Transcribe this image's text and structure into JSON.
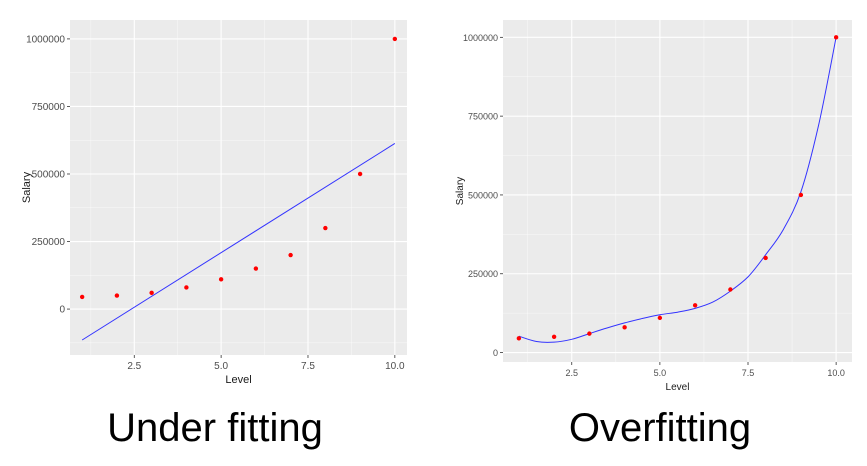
{
  "chart_data": [
    {
      "type": "scatter",
      "fit": "linear",
      "title": "",
      "xlabel": "Level",
      "ylabel": "Salary",
      "xlim": [
        0.65,
        10.35
      ],
      "ylim": [
        -170000,
        1070000
      ],
      "x_ticks": [
        2.5,
        5.0,
        7.5,
        10.0
      ],
      "x_tick_labels": [
        "2.5",
        "5.0",
        "7.5",
        "10.0"
      ],
      "y_ticks": [
        0,
        250000,
        500000,
        750000,
        1000000
      ],
      "y_tick_labels": [
        "0",
        "250000",
        "500000",
        "750000",
        "1000000"
      ],
      "grid": true,
      "series": [
        {
          "name": "data",
          "x": [
            1,
            2,
            3,
            4,
            5,
            6,
            7,
            8,
            9,
            10
          ],
          "y": [
            45000,
            50000,
            60000,
            80000,
            110000,
            150000,
            200000,
            300000,
            500000,
            1000000
          ],
          "color": "#ff0000"
        },
        {
          "name": "fit",
          "x": [
            1,
            10
          ],
          "y": [
            -114454,
            613000
          ],
          "color": "#3333ff"
        }
      ]
    },
    {
      "type": "scatter",
      "fit": "polynomial",
      "title": "",
      "xlabel": "Level",
      "ylabel": "Salary",
      "xlim": [
        0.55,
        10.45
      ],
      "ylim": [
        -30000,
        1055000
      ],
      "x_ticks": [
        2.5,
        5.0,
        7.5,
        10.0
      ],
      "x_tick_labels": [
        "2.5",
        "5.0",
        "7.5",
        "10.0"
      ],
      "y_ticks": [
        0,
        250000,
        500000,
        750000,
        1000000
      ],
      "y_tick_labels": [
        "0",
        "250000",
        "500000",
        "750000",
        "1000000"
      ],
      "grid": true,
      "series": [
        {
          "name": "data",
          "x": [
            1,
            2,
            3,
            4,
            5,
            6,
            7,
            8,
            9,
            10
          ],
          "y": [
            45000,
            50000,
            60000,
            80000,
            110000,
            150000,
            200000,
            300000,
            500000,
            1000000
          ],
          "color": "#ff0000"
        },
        {
          "name": "fit",
          "x": [
            1,
            1.5,
            2,
            2.5,
            3,
            3.5,
            4,
            4.5,
            5,
            5.5,
            6,
            6.5,
            7,
            7.5,
            8,
            8.5,
            9,
            9.5,
            10
          ],
          "y": [
            52000,
            35000,
            33000,
            42000,
            60000,
            78000,
            94000,
            108000,
            120000,
            128000,
            140000,
            160000,
            195000,
            240000,
            310000,
            390000,
            510000,
            720000,
            1000000
          ],
          "color": "#3333ff"
        }
      ]
    }
  ],
  "captions": {
    "left": "Under fitting",
    "right": "Overfitting"
  },
  "colors": {
    "panel_bg": "#ebebeb",
    "grid": "#ffffff",
    "axis_text": "#4d4d4d",
    "title_text": "#1a1a1a"
  }
}
